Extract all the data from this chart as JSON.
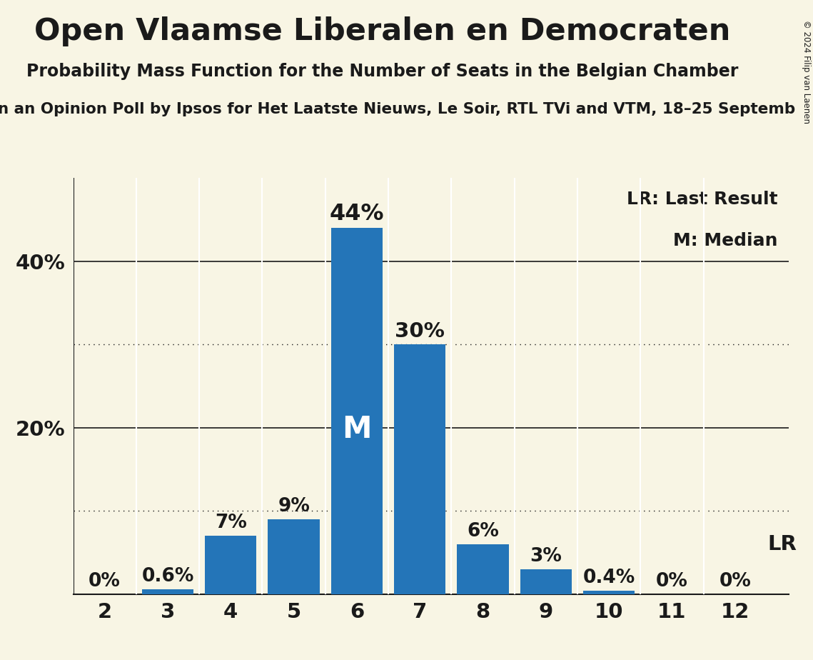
{
  "title": "Open Vlaamse Liberalen en Democraten",
  "subtitle": "Probability Mass Function for the Number of Seats in the Belgian Chamber",
  "sub_subtitle_display": "n an Opinion Poll by Ipsos for Het Laatste Nieuws, Le Soir, RTL TVi and VTM, 18–25 Septemb",
  "copyright": "© 2024 Filip van Laenen",
  "seats": [
    2,
    3,
    4,
    5,
    6,
    7,
    8,
    9,
    10,
    11,
    12
  ],
  "probabilities": [
    0.0,
    0.6,
    7.0,
    9.0,
    44.0,
    30.0,
    6.0,
    3.0,
    0.4,
    0.0,
    0.0
  ],
  "bar_color": "#2475b8",
  "median_seat": 6,
  "lr_seat": 12,
  "lr_label": "LR",
  "median_label": "M",
  "background_color": "#f8f5e4",
  "text_color": "#1a1a1a",
  "bar_label_format": [
    "0%",
    "0.6%",
    "7%",
    "9%",
    "44%",
    "30%",
    "6%",
    "3%",
    "0.4%",
    "0%",
    "0%"
  ],
  "solid_gridlines": [
    20,
    40
  ],
  "dotted_gridlines": [
    10,
    30
  ],
  "ylim": [
    0,
    50
  ],
  "legend_lr_text": "LR: Last Result",
  "legend_m_text": "M: Median"
}
